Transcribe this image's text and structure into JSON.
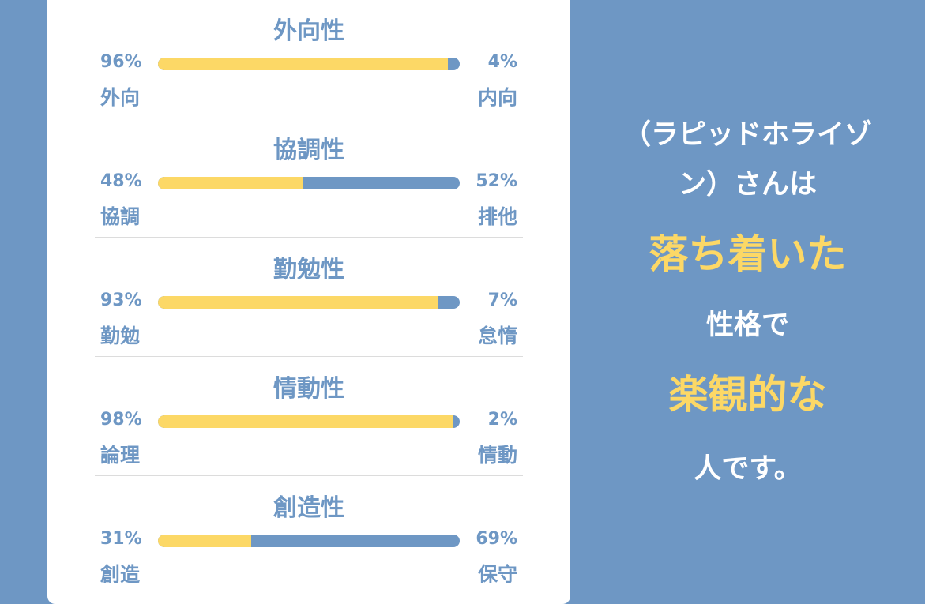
{
  "traits": [
    {
      "title": "外向性",
      "left_pct": "96%",
      "right_pct": "4%",
      "left_label": "外向",
      "right_label": "内向",
      "fill_percent": 96
    },
    {
      "title": "協調性",
      "left_pct": "48%",
      "right_pct": "52%",
      "left_label": "協調",
      "right_label": "排他",
      "fill_percent": 48
    },
    {
      "title": "勤勉性",
      "left_pct": "93%",
      "right_pct": "7%",
      "left_label": "勤勉",
      "right_label": "怠惰",
      "fill_percent": 93
    },
    {
      "title": "情動性",
      "left_pct": "98%",
      "right_pct": "2%",
      "left_label": "論理",
      "right_label": "情動",
      "fill_percent": 98
    },
    {
      "title": "創造性",
      "left_pct": "31%",
      "right_pct": "69%",
      "left_label": "創造",
      "right_label": "保守",
      "fill_percent": 31
    }
  ],
  "summary": {
    "name_line1": "（ラピッドホライゾ",
    "name_line2": "ン）さんは",
    "trait1": "落ち着いた",
    "connector": "性格で",
    "trait2": "楽観的な",
    "ending": "人です。"
  },
  "colors": {
    "background": "#6e97c4",
    "card": "#ffffff",
    "accent": "#fcd866",
    "bar_base": "#6e97c4"
  }
}
